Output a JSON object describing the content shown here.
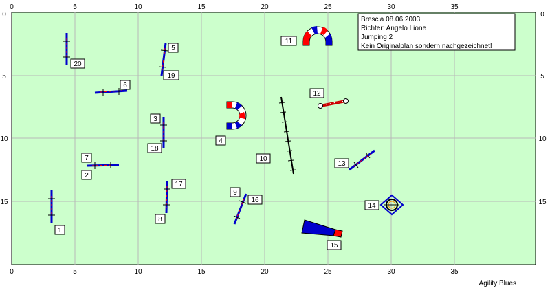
{
  "info": {
    "lines": [
      "Brescia 08.06.2003",
      "Richter: Angelo Lione",
      "Jumping 2",
      "Kein Originalplan sondern nachgezeichnet!"
    ]
  },
  "footer": {
    "text": "Agility Blues"
  },
  "axes": {
    "x_ticks": [
      "0",
      "5",
      "10",
      "15",
      "20",
      "25",
      "30",
      "35"
    ],
    "y_ticks": [
      "0",
      "5",
      "10",
      "15"
    ]
  },
  "obstacles": [
    {
      "id": "jump-1",
      "kind": "jump",
      "label": "1"
    },
    {
      "id": "jump-2-7",
      "kind": "jump",
      "labels": [
        "2",
        "7"
      ]
    },
    {
      "id": "jump-3-18",
      "kind": "jump",
      "labels": [
        "3",
        "18"
      ]
    },
    {
      "id": "tunnel-4",
      "kind": "tunnel",
      "label": "4"
    },
    {
      "id": "jump-5-19",
      "kind": "jump",
      "labels": [
        "5",
        "19"
      ]
    },
    {
      "id": "jump-6",
      "kind": "jump",
      "label": "6"
    },
    {
      "id": "jump-8-17",
      "kind": "jump",
      "labels": [
        "8",
        "17"
      ]
    },
    {
      "id": "jump-9-16",
      "kind": "jump",
      "labels": [
        "9",
        "16"
      ]
    },
    {
      "id": "weave-10",
      "kind": "weave-poles",
      "label": "10"
    },
    {
      "id": "tunnel-11",
      "kind": "tunnel",
      "label": "11"
    },
    {
      "id": "tire-12",
      "kind": "long-jump",
      "label": "12"
    },
    {
      "id": "jump-13",
      "kind": "jump",
      "label": "13"
    },
    {
      "id": "tire-14",
      "kind": "tire",
      "label": "14"
    },
    {
      "id": "chute-15",
      "kind": "collapsed-tunnel",
      "label": "15"
    },
    {
      "id": "jump-20",
      "kind": "jump",
      "label": "20"
    }
  ],
  "colors": {
    "field": "#ccffcc",
    "grid": "#c0c0c0",
    "blue": "#0000cc",
    "red": "#ff0000"
  }
}
